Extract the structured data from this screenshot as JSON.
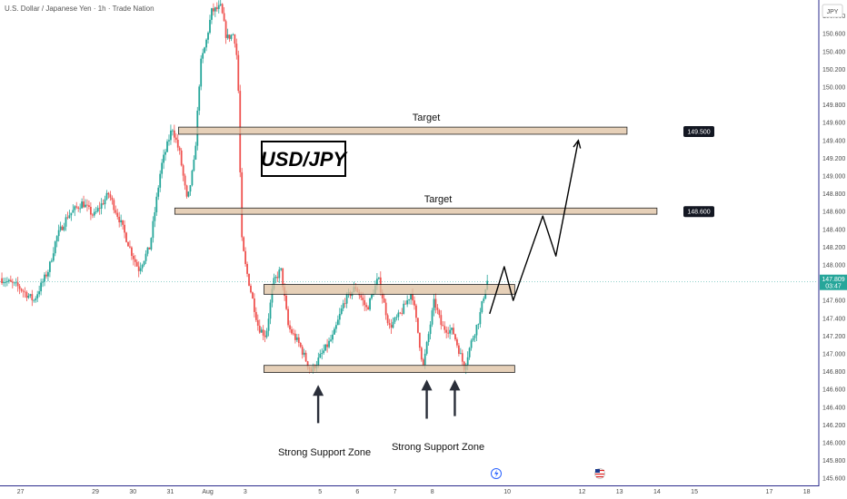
{
  "header": {
    "title": "U.S. Dollar / Japanese Yen · 1h · Trade Nation",
    "currency": "JPY"
  },
  "chart_data": {
    "type": "candlestick",
    "y_ticks": [
      150.8,
      150.6,
      150.4,
      150.2,
      150.0,
      149.8,
      149.6,
      149.4,
      149.2,
      149.0,
      148.8,
      148.6,
      148.4,
      148.2,
      148.0,
      147.6,
      147.4,
      147.2,
      147.0,
      146.8,
      146.6,
      146.4,
      146.2,
      146.0,
      145.8,
      145.6
    ],
    "x_ticks": [
      {
        "label": "27",
        "d": 0
      },
      {
        "label": "29",
        "d": 2
      },
      {
        "label": "30",
        "d": 3
      },
      {
        "label": "31",
        "d": 4
      },
      {
        "label": "Aug",
        "d": 5
      },
      {
        "label": "3",
        "d": 6
      },
      {
        "label": "5",
        "d": 8
      },
      {
        "label": "6",
        "d": 9
      },
      {
        "label": "7",
        "d": 10
      },
      {
        "label": "8",
        "d": 11
      },
      {
        "label": "10",
        "d": 13
      },
      {
        "label": "12",
        "d": 15
      },
      {
        "label": "13",
        "d": 16
      },
      {
        "label": "14",
        "d": 17
      },
      {
        "label": "15",
        "d": 18
      },
      {
        "label": "17",
        "d": 20
      },
      {
        "label": "18",
        "d": 21
      }
    ],
    "ylim": [
      145.52,
      150.98
    ],
    "xlim": [
      -0.55,
      21.3
    ],
    "current_price": {
      "value": 147.809,
      "label": "147.809",
      "countdown": "03:47"
    },
    "price_tags": [
      {
        "value": 149.5,
        "label": "149.500"
      },
      {
        "value": 148.6,
        "label": "148.600"
      }
    ],
    "anchors": [
      [
        -0.5,
        147.85
      ],
      [
        0.0,
        147.75
      ],
      [
        0.4,
        147.6
      ],
      [
        0.8,
        147.95
      ],
      [
        1.0,
        148.3
      ],
      [
        1.3,
        148.55
      ],
      [
        1.7,
        148.7
      ],
      [
        2.0,
        148.55
      ],
      [
        2.4,
        148.8
      ],
      [
        2.7,
        148.5
      ],
      [
        3.0,
        148.15
      ],
      [
        3.2,
        147.95
      ],
      [
        3.5,
        148.2
      ],
      [
        3.8,
        149.1
      ],
      [
        4.1,
        149.55
      ],
      [
        4.3,
        149.25
      ],
      [
        4.5,
        148.7
      ],
      [
        4.7,
        149.2
      ],
      [
        4.85,
        150.25
      ],
      [
        5.0,
        150.5
      ],
      [
        5.15,
        150.85
      ],
      [
        5.4,
        150.9
      ],
      [
        5.55,
        150.55
      ],
      [
        5.75,
        150.6
      ],
      [
        5.85,
        150.25
      ],
      [
        5.95,
        148.3
      ],
      [
        6.05,
        148.0
      ],
      [
        6.2,
        147.7
      ],
      [
        6.4,
        147.3
      ],
      [
        6.6,
        147.2
      ],
      [
        6.8,
        147.8
      ],
      [
        7.0,
        147.95
      ],
      [
        7.2,
        147.3
      ],
      [
        7.5,
        147.1
      ],
      [
        7.8,
        146.8
      ],
      [
        8.1,
        147.0
      ],
      [
        8.4,
        147.2
      ],
      [
        8.7,
        147.6
      ],
      [
        9.0,
        147.75
      ],
      [
        9.3,
        147.5
      ],
      [
        9.6,
        147.85
      ],
      [
        9.9,
        147.3
      ],
      [
        10.2,
        147.45
      ],
      [
        10.5,
        147.7
      ],
      [
        10.8,
        146.85
      ],
      [
        11.1,
        147.6
      ],
      [
        11.3,
        147.3
      ],
      [
        11.6,
        147.25
      ],
      [
        11.9,
        146.85
      ],
      [
        12.1,
        147.15
      ],
      [
        12.3,
        147.4
      ],
      [
        12.5,
        147.82
      ]
    ],
    "zones": [
      {
        "name": "target-zone-1",
        "x0": 4.22,
        "x1": 16.2,
        "y0": 149.47,
        "y1": 149.55
      },
      {
        "name": "target-zone-2",
        "x0": 4.12,
        "x1": 17.0,
        "y0": 148.57,
        "y1": 148.64
      },
      {
        "name": "resistance-zone",
        "x0": 6.5,
        "x1": 13.2,
        "y0": 147.67,
        "y1": 147.78
      },
      {
        "name": "support-zone",
        "x0": 6.5,
        "x1": 13.2,
        "y0": 146.79,
        "y1": 146.87
      }
    ],
    "projection": [
      [
        12.53,
        147.45
      ],
      [
        12.92,
        147.98
      ],
      [
        13.16,
        147.6
      ],
      [
        13.95,
        148.55
      ],
      [
        14.3,
        148.1
      ],
      [
        14.9,
        149.4
      ]
    ],
    "support_arrows": [
      {
        "x": 7.95,
        "y0": 146.22,
        "y1": 146.65
      },
      {
        "x": 10.85,
        "y0": 146.27,
        "y1": 146.71
      },
      {
        "x": 11.6,
        "y0": 146.3,
        "y1": 146.71
      }
    ],
    "annotations": {
      "symbol": "USD/JPY",
      "target_1": "Target",
      "target_2": "Target",
      "support_1": "Strong Support Zone",
      "support_2": "Strong Support Zone"
    }
  }
}
